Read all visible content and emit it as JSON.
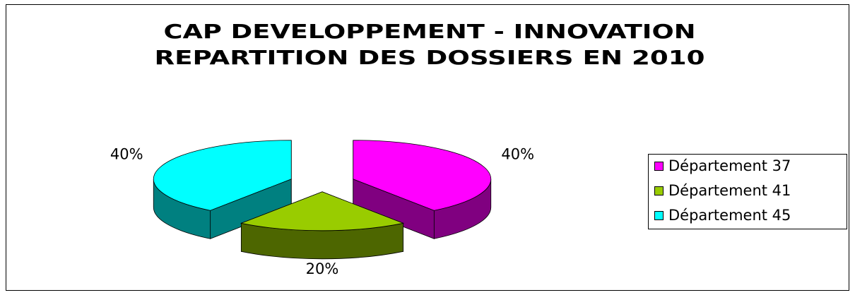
{
  "chart_data": {
    "type": "pie3d",
    "title": [
      "CAP DEVELOPPEMENT - INNOVATION",
      "REPARTITION DES DOSSIERS EN 2010"
    ],
    "categories": [
      "Département 37",
      "Département 41",
      "Département 45"
    ],
    "values": [
      40,
      20,
      40
    ],
    "value_labels": [
      "40%",
      "20%",
      "40%"
    ],
    "colors": [
      "#ff00ff",
      "#99cc00",
      "#00ffff"
    ],
    "title_color": "#0000ff",
    "legend": "right",
    "exploded": true
  }
}
